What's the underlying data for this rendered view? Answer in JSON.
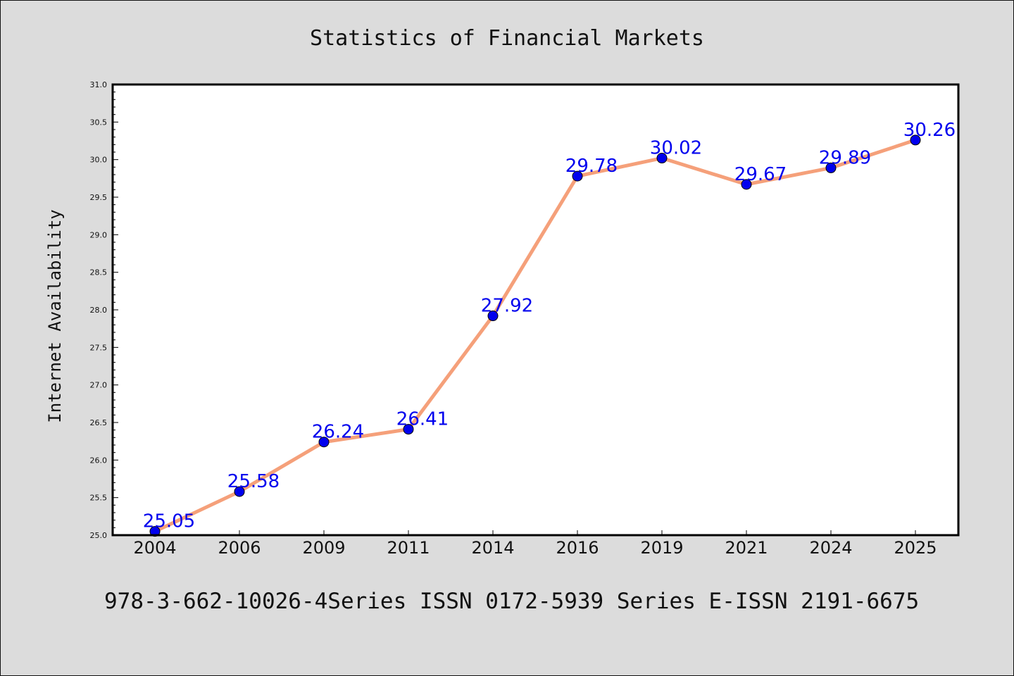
{
  "chart_data": {
    "type": "line",
    "title": "Statistics of Financial Markets",
    "ylabel": "Internet Availability",
    "xlabel": "",
    "categories": [
      "2004",
      "2006",
      "2009",
      "2011",
      "2014",
      "2016",
      "2019",
      "2021",
      "2024",
      "2025"
    ],
    "series": [
      {
        "values": [
          25.05,
          25.58,
          26.24,
          26.41,
          27.92,
          29.78,
          30.02,
          29.67,
          29.89,
          30.26
        ],
        "line_color": "#f5a07a",
        "marker_color": "#0000ee"
      }
    ],
    "data_labels": [
      "25.05",
      "25.58",
      "26.24",
      "26.41",
      "27.92",
      "29.78",
      "30.02",
      "29.67",
      "29.89",
      "30.26"
    ],
    "ylim": [
      25.0,
      31.0
    ],
    "yticks": [
      "25.0",
      "25.5",
      "26.0",
      "26.5",
      "27.0",
      "27.5",
      "28.0",
      "28.5",
      "29.0",
      "29.5",
      "30.0",
      "30.5",
      "31.0"
    ],
    "grid": false,
    "label_color": "#0000ee"
  },
  "footer": {
    "text": "978-3-662-10026-4Series ISSN 0172-5939 Series E-ISSN 2191-6675"
  }
}
